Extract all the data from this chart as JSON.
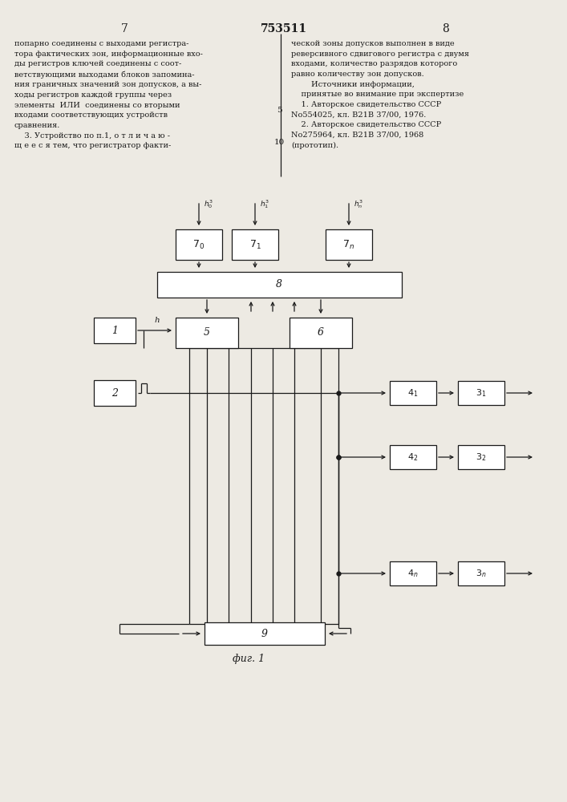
{
  "bg_color": "#edeae3",
  "text_color": "#1a1a1a",
  "box_color": "#ffffff",
  "title": "753511",
  "page_left": "7",
  "page_right": "8",
  "fig_label": "фиг. 1",
  "text_left": "попарно соединены с выходами регистра-\nтора фактических зон, информационные вхо-\nды регистров ключей соединены с соот-\nветствующими выходами блоков запомина-\nния граничных значений зон допусков, а вы-\nходы регистров каждой группы через\nэлементы  ИЛИ  соединены со вторыми\nвходами соответствующих устройств\nсравнения.\n    3. Устройство по п.1, о т л и ч а ю -\nщ е е с я тем, что регистратор факти-",
  "text_right": "ческой зоны допусков выполнен в виде\nреверсивного сдвигового регистра с двумя\nвходами, количество разрядов которого\nравно количеству зон допусков.\n        Источники информации,\n    принятые во внимание при экспертизе\n    1. Авторское свидетельство СССР\nNo554025, кл. В21В 37/00, 1976.\n    2. Авторское свидетельство СССР\nNo275964, кл. В21В 37/00, 1968\n(прототип).",
  "lnum5": "5",
  "lnum10": "10",
  "dot_label": "•"
}
